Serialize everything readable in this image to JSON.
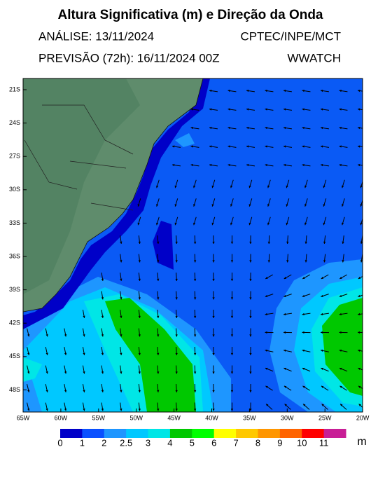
{
  "header": {
    "title": "Altura Significativa (m) e Direção da Onda",
    "analysis": "ANÁLISE: 13/11/2024",
    "source": "CPTEC/INPE/MCT",
    "forecast": "PREVISÃO (72h): 16/11/2024 00Z",
    "model": "WWATCH"
  },
  "map": {
    "lat_labels": [
      "21S",
      "24S",
      "27S",
      "30S",
      "33S",
      "36S",
      "39S",
      "42S",
      "45S",
      "48S"
    ],
    "lon_labels": [
      "65W",
      "60W",
      "55W",
      "50W",
      "45W",
      "40W",
      "35W",
      "30W",
      "25W",
      "20W"
    ]
  },
  "colorbar": {
    "labels": [
      0,
      1,
      2,
      2.5,
      3,
      4,
      5,
      6,
      7,
      8,
      9,
      10,
      11
    ],
    "colors": [
      "#0000c8",
      "#0a50ff",
      "#1e96ff",
      "#00c8ff",
      "#00e6e6",
      "#00c800",
      "#00ff00",
      "#ffff00",
      "#ffc800",
      "#ff9600",
      "#ff6400",
      "#ff0000",
      "#c81e96",
      "#a0282d"
    ],
    "unit": "m"
  }
}
